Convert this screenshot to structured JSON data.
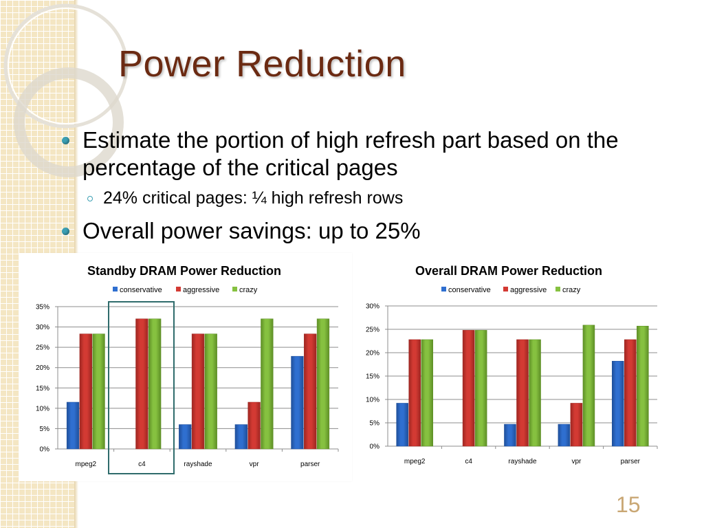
{
  "slide": {
    "title": "Power Reduction",
    "bullets": [
      "Estimate the portion of high refresh part based on the percentage of the critical pages",
      "Overall power savings: up to 25%"
    ],
    "sub_bullet": "24% critical pages: ¼ high refresh rows",
    "page_number": "15"
  },
  "colors": {
    "title": "#6b2a12",
    "bullet": "#3b9fb3",
    "conservative": "#2f6fd0",
    "aggressive": "#d33a33",
    "crazy": "#86c140",
    "page_number": "#c9a774",
    "highlight_box": "#2e6b6b"
  },
  "chart_data": [
    {
      "type": "bar",
      "title": "Standby DRAM Power Reduction",
      "categories": [
        "mpeg2",
        "c4",
        "rayshade",
        "vpr",
        "parser"
      ],
      "series": [
        {
          "name": "conservative",
          "values": [
            11.5,
            0,
            6,
            6,
            22.8
          ]
        },
        {
          "name": "aggressive",
          "values": [
            28.3,
            32,
            28.3,
            11.5,
            28.3
          ]
        },
        {
          "name": "crazy",
          "values": [
            28.3,
            32,
            28.3,
            32,
            32
          ]
        }
      ],
      "ylim": [
        0,
        35
      ],
      "yticks": [
        "0%",
        "5%",
        "10%",
        "15%",
        "20%",
        "25%",
        "30%",
        "35%"
      ],
      "legend": "top",
      "grid": true,
      "highlighted_category": "c4"
    },
    {
      "type": "bar",
      "title": "Overall DRAM Power Reduction",
      "categories": [
        "mpeg2",
        "c4",
        "rayshade",
        "vpr",
        "parser"
      ],
      "series": [
        {
          "name": "conservative",
          "values": [
            9.2,
            0,
            4.7,
            4.7,
            18.2
          ]
        },
        {
          "name": "aggressive",
          "values": [
            22.8,
            24.8,
            22.8,
            9.2,
            22.8
          ]
        },
        {
          "name": "crazy",
          "values": [
            22.8,
            24.8,
            22.8,
            25.9,
            25.7
          ]
        }
      ],
      "ylim": [
        0,
        30
      ],
      "yticks": [
        "0%",
        "5%",
        "10%",
        "15%",
        "20%",
        "25%",
        "30%"
      ],
      "legend": "top",
      "grid": true
    }
  ]
}
